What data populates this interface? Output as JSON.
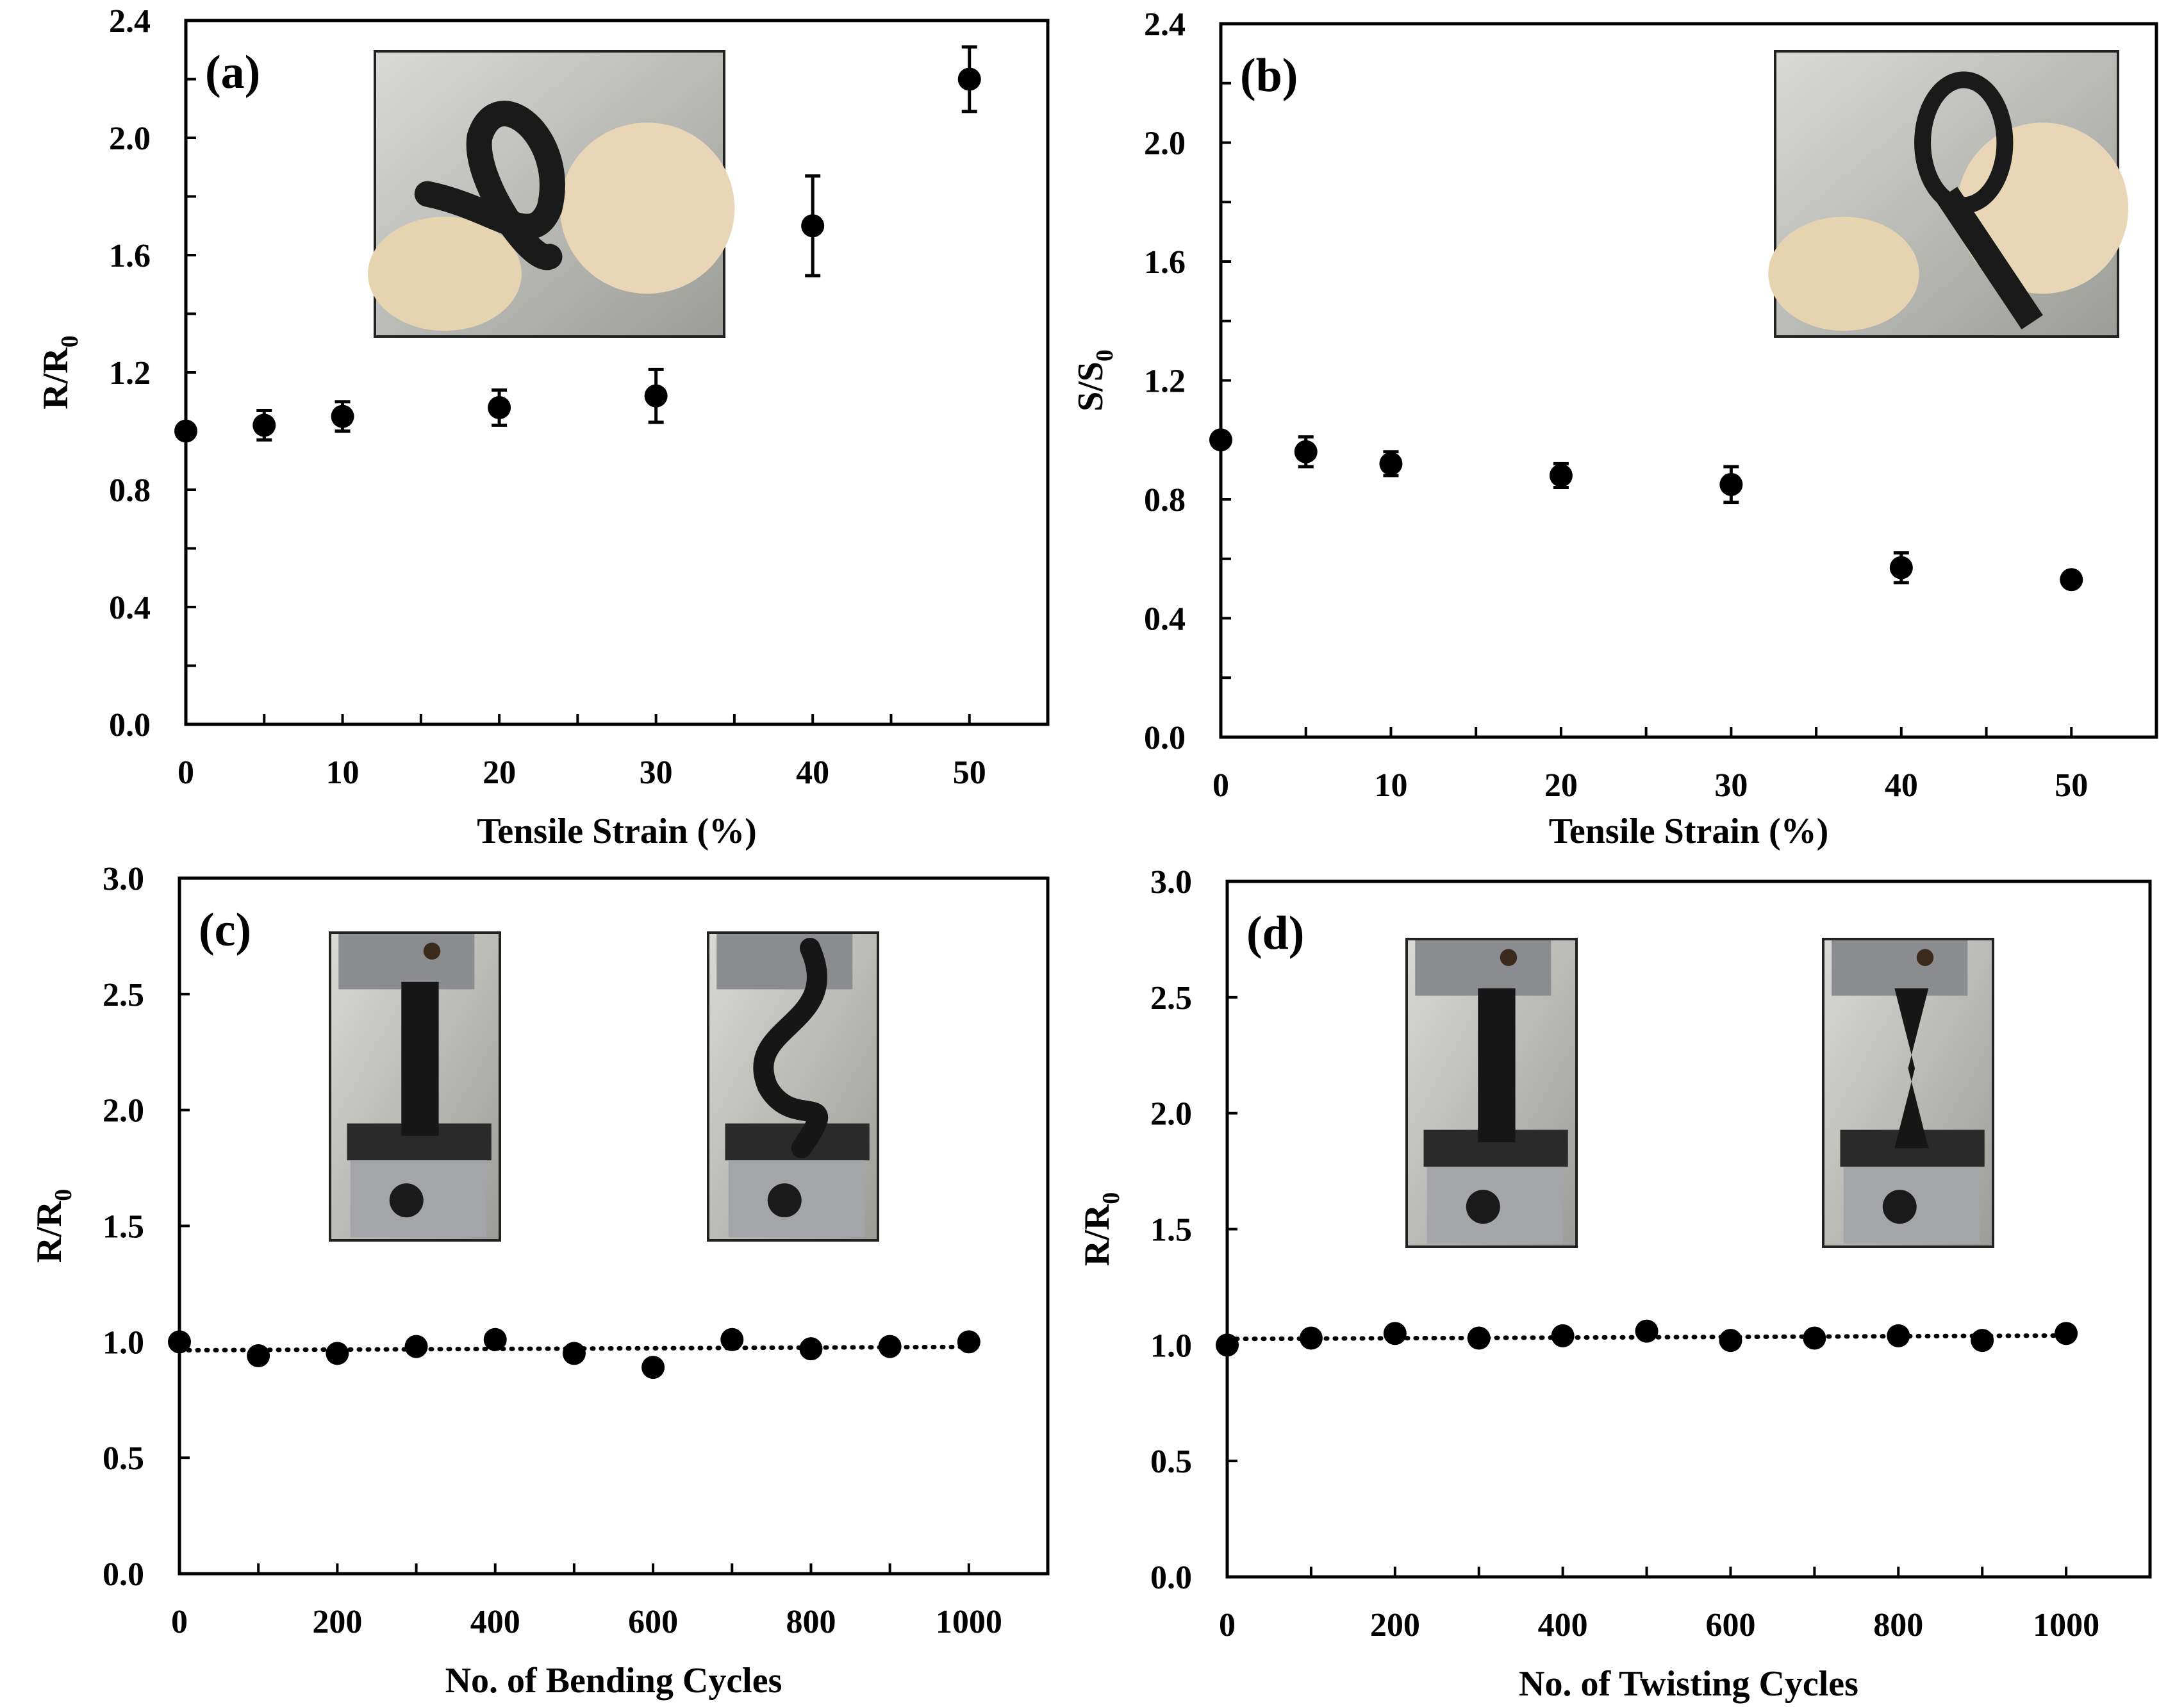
{
  "colors": {
    "marker": "#000000",
    "axis": "#000000",
    "background": "#ffffff",
    "photo_bg": "#b8b8b8"
  },
  "chart_data": [
    {
      "panel_label": "(a)",
      "type": "scatter",
      "xlabel": "Tensile Strain (%)",
      "ylabel": "R/R0",
      "ylabel_main": "R/R",
      "ylabel_sub": "0",
      "xlim": [
        0,
        55
      ],
      "ylim": [
        0,
        2.4
      ],
      "xticks": [
        0,
        10,
        20,
        30,
        40,
        50
      ],
      "xticks_minor": [
        5,
        15,
        25,
        35,
        45,
        55
      ],
      "yticks": [
        "0.0",
        "0.4",
        "0.8",
        "1.2",
        "1.6",
        "2.0",
        "2.4"
      ],
      "ytick_values": [
        0,
        0.4,
        0.8,
        1.2,
        1.6,
        2.0,
        2.4
      ],
      "yticks_minor": [
        0.2,
        0.6,
        1.0,
        1.4,
        1.8,
        2.2
      ],
      "series": [
        {
          "x": [
            0,
            5,
            10,
            20,
            30,
            40,
            50
          ],
          "y": [
            1.0,
            1.02,
            1.05,
            1.08,
            1.12,
            1.7,
            2.2
          ],
          "yerr": [
            0.0,
            0.05,
            0.05,
            0.06,
            0.09,
            0.17,
            0.11
          ],
          "trendline": false
        }
      ],
      "inset_photos": [
        "bent-strip-photo"
      ]
    },
    {
      "panel_label": "(b)",
      "type": "scatter",
      "xlabel": "Tensile Strain (%)",
      "ylabel": "S/S0",
      "ylabel_main": "S/S",
      "ylabel_sub": "0",
      "xlim": [
        0,
        55
      ],
      "ylim": [
        0,
        2.4
      ],
      "xticks": [
        0,
        10,
        20,
        30,
        40,
        50
      ],
      "xticks_minor": [
        5,
        15,
        25,
        35,
        45,
        55
      ],
      "yticks": [
        "0.0",
        "0.4",
        "0.8",
        "1.2",
        "1.6",
        "2.0",
        "2.4"
      ],
      "ytick_values": [
        0,
        0.4,
        0.8,
        1.2,
        1.6,
        2.0,
        2.4
      ],
      "yticks_minor": [
        0.2,
        0.6,
        1.0,
        1.4,
        1.8,
        2.2
      ],
      "series": [
        {
          "x": [
            0,
            5,
            10,
            20,
            30,
            40,
            50
          ],
          "y": [
            1.0,
            0.96,
            0.92,
            0.88,
            0.85,
            0.57,
            0.53
          ],
          "yerr": [
            0.0,
            0.05,
            0.04,
            0.04,
            0.06,
            0.05,
            0.0
          ],
          "trendline": false
        }
      ],
      "inset_photos": [
        "looped-strip-photo"
      ]
    },
    {
      "panel_label": "(c)",
      "type": "scatter",
      "xlabel": "No. of Bending Cycles",
      "ylabel": "R/R0",
      "ylabel_main": "R/R",
      "ylabel_sub": "0",
      "xlim": [
        0,
        1100
      ],
      "ylim": [
        0,
        3.0
      ],
      "xticks": [
        0,
        200,
        400,
        600,
        800,
        1000
      ],
      "xticks_minor": [
        100,
        300,
        500,
        700,
        900,
        1100
      ],
      "yticks": [
        "0.0",
        "0.5",
        "1.0",
        "1.5",
        "2.0",
        "2.5",
        "3.0"
      ],
      "ytick_values": [
        0,
        0.5,
        1.0,
        1.5,
        2.0,
        2.5,
        3.0
      ],
      "yticks_minor": [],
      "series": [
        {
          "x": [
            0,
            100,
            200,
            300,
            400,
            500,
            600,
            700,
            800,
            900,
            1000
          ],
          "y": [
            1.0,
            0.94,
            0.95,
            0.98,
            1.01,
            0.95,
            0.89,
            1.01,
            0.97,
            0.98,
            1.0
          ],
          "yerr": [],
          "trendline": true
        }
      ],
      "inset_photos": [
        "straight-strip-photo",
        "bent-strip-in-grips-photo"
      ]
    },
    {
      "panel_label": "(d)",
      "type": "scatter",
      "xlabel": "No. of Twisting Cycles",
      "ylabel": "R/R0",
      "ylabel_main": "R/R",
      "ylabel_sub": "0",
      "xlim": [
        0,
        1100
      ],
      "ylim": [
        0,
        3.0
      ],
      "xticks": [
        0,
        200,
        400,
        600,
        800,
        1000
      ],
      "xticks_minor": [
        100,
        300,
        500,
        700,
        900,
        1100
      ],
      "yticks": [
        "0.0",
        "0.5",
        "1.0",
        "1.5",
        "2.0",
        "2.5",
        "3.0"
      ],
      "ytick_values": [
        0,
        0.5,
        1.0,
        1.5,
        2.0,
        2.5,
        3.0
      ],
      "yticks_minor": [],
      "series": [
        {
          "x": [
            0,
            100,
            200,
            300,
            400,
            500,
            600,
            700,
            800,
            900,
            1000
          ],
          "y": [
            1.0,
            1.03,
            1.05,
            1.03,
            1.04,
            1.06,
            1.02,
            1.03,
            1.04,
            1.02,
            1.05
          ],
          "yerr": [],
          "trendline": true
        }
      ],
      "inset_photos": [
        "straight-strip-photo",
        "twisted-strip-in-grips-photo"
      ]
    }
  ]
}
